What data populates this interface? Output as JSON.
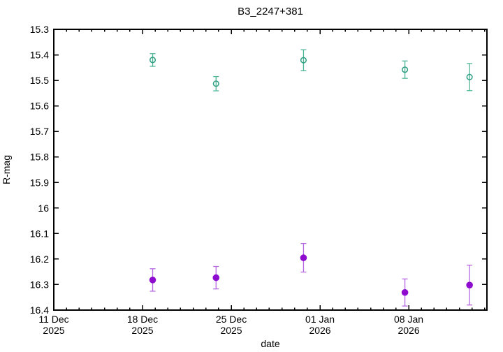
{
  "window": {
    "background": "#ffffff"
  },
  "chart_data": {
    "type": "scatter",
    "title": "B3_2247+381",
    "xlabel": "date",
    "ylabel": "R-mag",
    "legend": "none",
    "grid": false,
    "axis_color": "#000000",
    "x_axis": {
      "unit": "days since 11 Dec 2025",
      "range": [
        0,
        34.17
      ],
      "minor_step": 1,
      "major_ticks": [
        {
          "pos": 0,
          "line1": "11 Dec",
          "line2": "2025"
        },
        {
          "pos": 7,
          "line1": "18 Dec",
          "line2": "2025"
        },
        {
          "pos": 14,
          "line1": "25 Dec",
          "line2": "2025"
        },
        {
          "pos": 21,
          "line1": "01 Jan",
          "line2": "2026"
        },
        {
          "pos": 28,
          "line1": "08 Jan",
          "line2": "2026"
        }
      ]
    },
    "y_axis": {
      "range": [
        15.3,
        16.4
      ],
      "major_step": 0.1,
      "inverted_magnitude_scale": true,
      "tick_labels": [
        "15.3",
        "15.4",
        "15.5",
        "15.6",
        "15.7",
        "15.8",
        "15.9",
        "16",
        "16.1",
        "16.2",
        "16.3",
        "16.4"
      ]
    },
    "series": [
      {
        "name": "bright-component-open-circles",
        "marker": "open-circle",
        "color": "#2e9e82",
        "errorbar_color": "#4fb597",
        "points": [
          {
            "x": 7.8,
            "date": "19 Dec 2025",
            "y": 15.42,
            "err": 0.025
          },
          {
            "x": 12.8,
            "date": "24 Dec 2025",
            "y": 15.513,
            "err": 0.028
          },
          {
            "x": 19.7,
            "date": "31 Dec 2025",
            "y": 15.421,
            "err": 0.041
          },
          {
            "x": 27.7,
            "date": "08 Jan 2026",
            "y": 15.458,
            "err": 0.034
          },
          {
            "x": 32.8,
            "date": "13 Jan 2026",
            "y": 15.487,
            "err": 0.053
          }
        ]
      },
      {
        "name": "faint-component-filled-circles",
        "marker": "filled-circle",
        "color": "#8e0bd0",
        "errorbar_color": "#b668e2",
        "points": [
          {
            "x": 7.8,
            "date": "19 Dec 2025",
            "y": 16.282,
            "err": 0.044
          },
          {
            "x": 12.8,
            "date": "24 Dec 2025",
            "y": 16.273,
            "err": 0.044
          },
          {
            "x": 19.7,
            "date": "31 Dec 2025",
            "y": 16.195,
            "err": 0.056
          },
          {
            "x": 27.7,
            "date": "08 Jan 2026",
            "y": 16.331,
            "err": 0.053
          },
          {
            "x": 32.8,
            "date": "13 Jan 2026",
            "y": 16.302,
            "err": 0.078
          }
        ]
      }
    ]
  }
}
